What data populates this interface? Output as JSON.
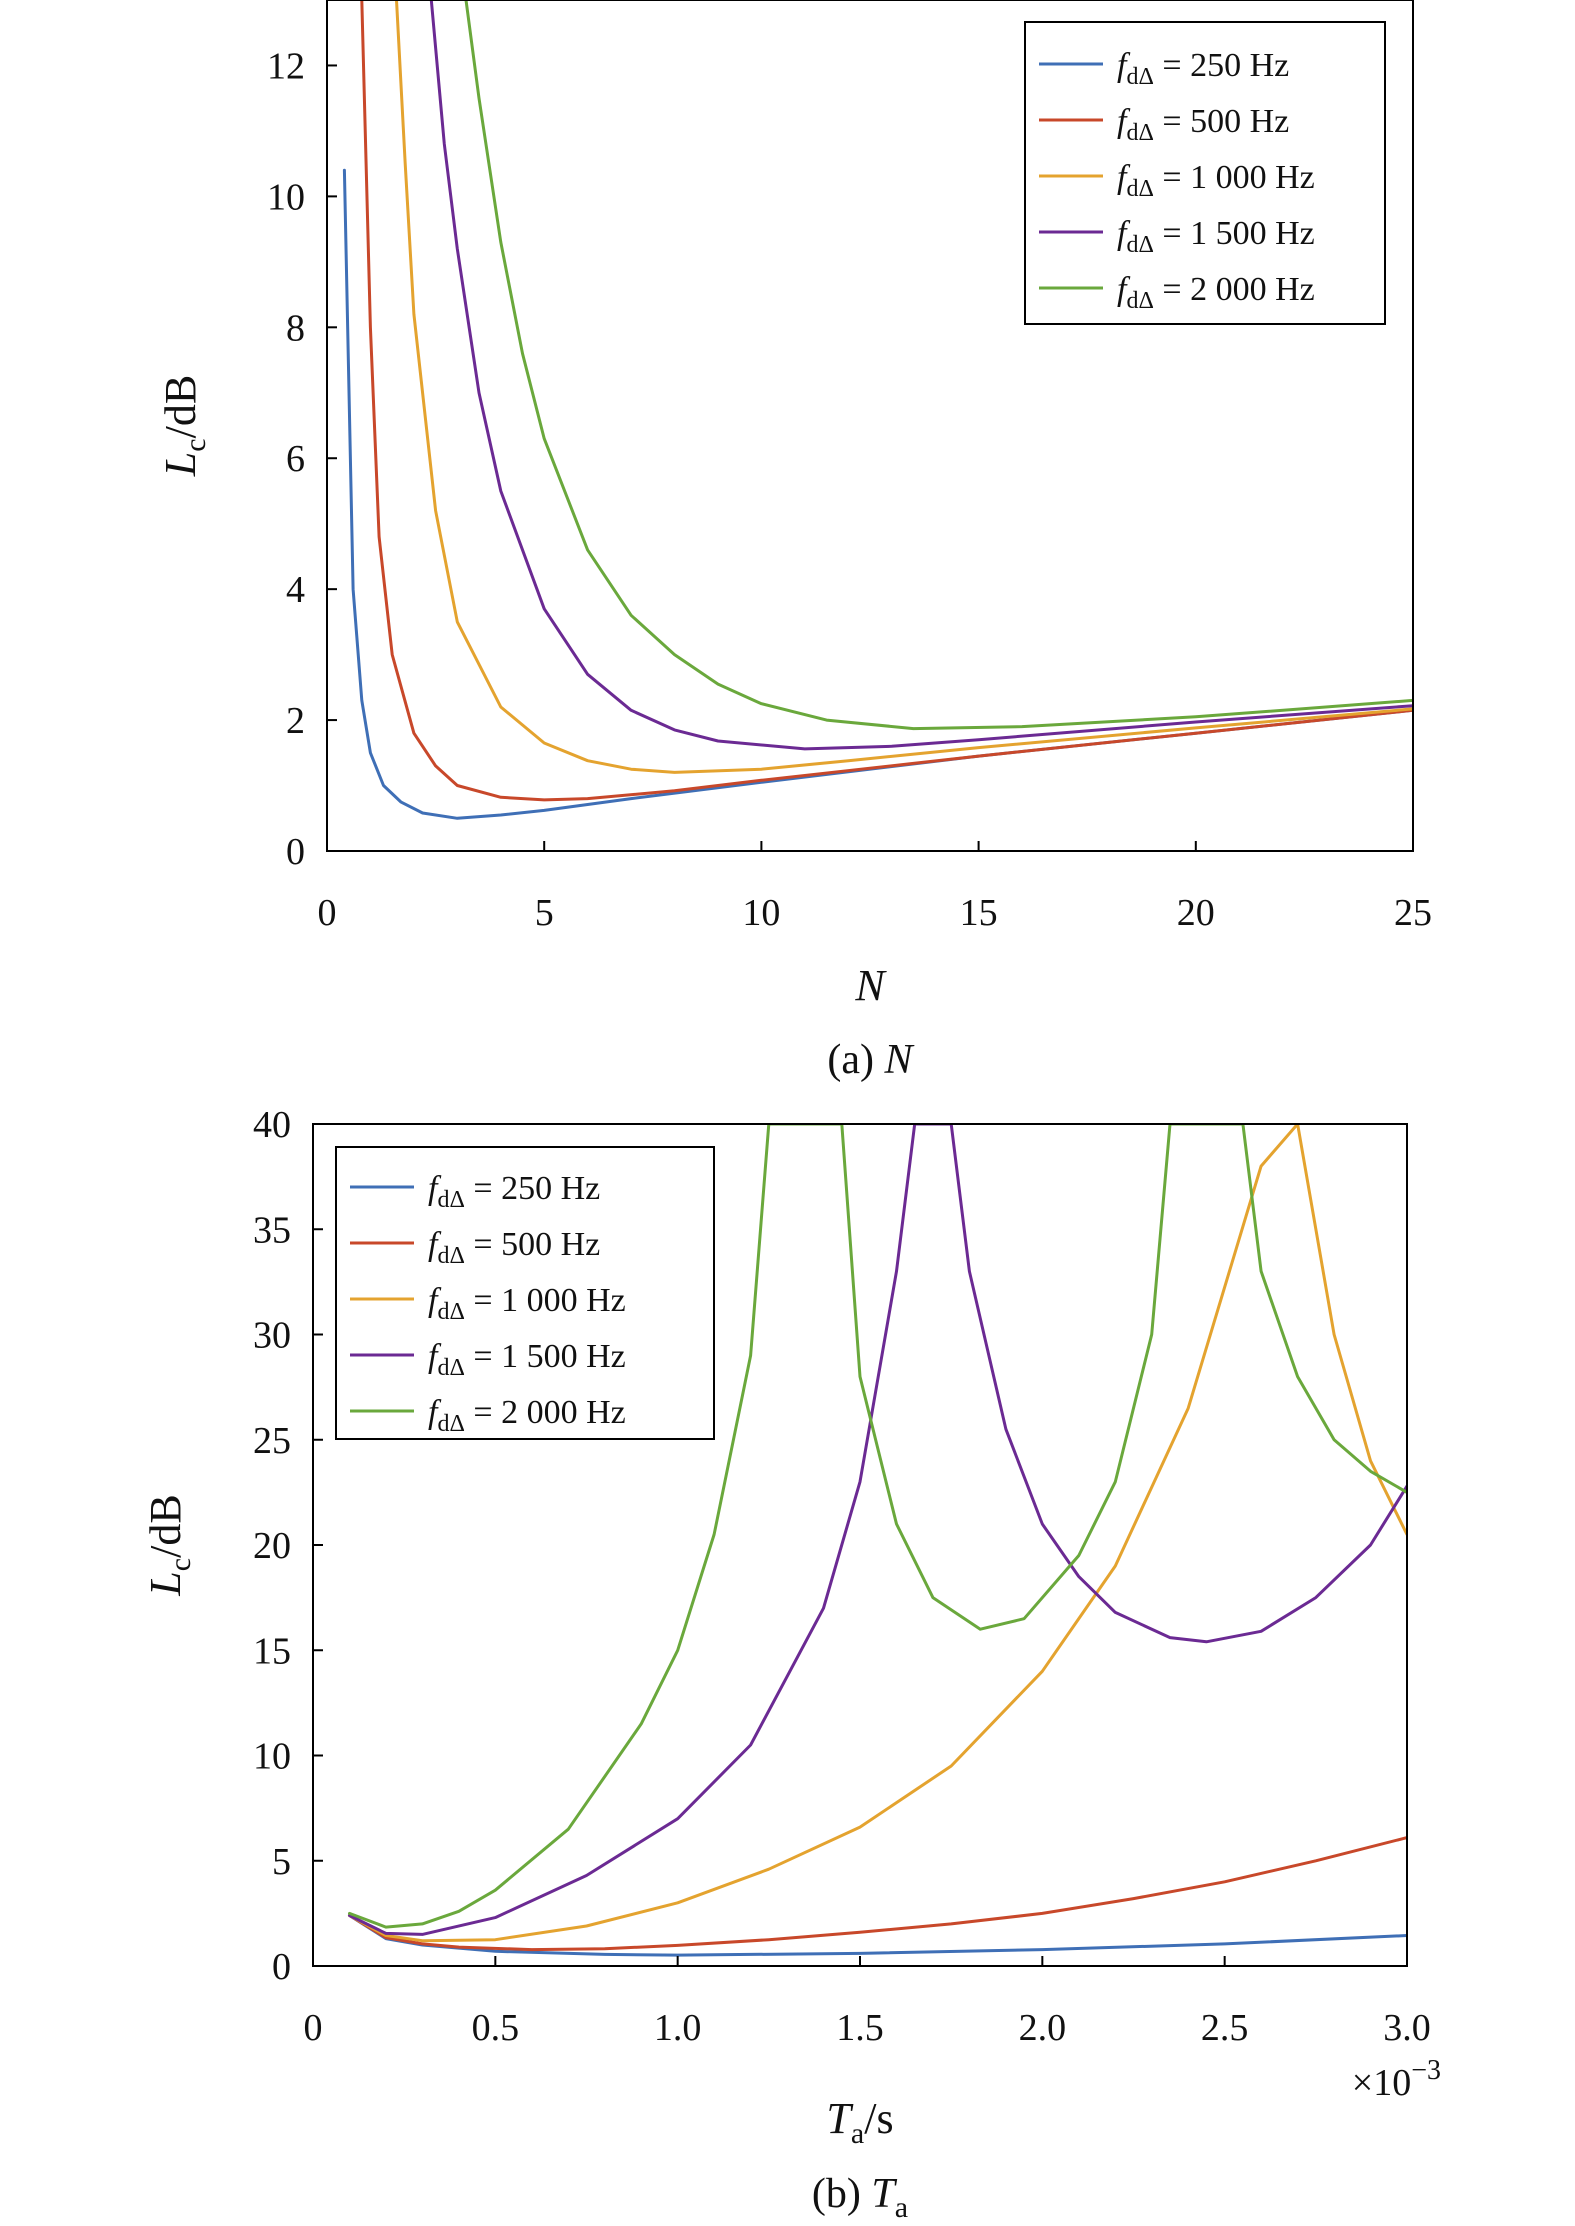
{
  "chart_data": [
    {
      "type": "line",
      "caption": "(a) N",
      "xlabel": "N",
      "ylabel": "Lc/dB",
      "xlim": [
        0,
        25
      ],
      "ylim": [
        0,
        13
      ],
      "xticks": [
        0,
        5,
        10,
        15,
        20,
        25
      ],
      "yticks": [
        0,
        2,
        4,
        6,
        8,
        10,
        12
      ],
      "xtick_labels": [
        "0",
        "5",
        "10",
        "15",
        "20",
        "25"
      ],
      "ytick_labels": [
        "0",
        "2",
        "4",
        "6",
        "8",
        "10",
        "12"
      ],
      "legend_position": "top-right",
      "grid": false,
      "series": [
        {
          "name": "f = 250 Hz",
          "label_main": "f",
          "label_sub": "dΔ",
          "label_rest": " = 250 Hz",
          "color": "#3f6fb6",
          "x": [
            0.4,
            0.6,
            0.8,
            1.0,
            1.3,
            1.7,
            2.2,
            3.0,
            4.0,
            5.0,
            7.0,
            10.0,
            15.0,
            20.0,
            25.0
          ],
          "y": [
            10.4,
            4.0,
            2.3,
            1.5,
            1.0,
            0.75,
            0.58,
            0.5,
            0.55,
            0.62,
            0.8,
            1.05,
            1.45,
            1.8,
            2.15
          ]
        },
        {
          "name": "f = 500 Hz",
          "label_main": "f",
          "label_sub": "dΔ",
          "label_rest": " = 500 Hz",
          "color": "#c8482a",
          "x": [
            0.8,
            0.9,
            1.0,
            1.2,
            1.5,
            2.0,
            2.5,
            3.0,
            4.0,
            5.0,
            6.0,
            8.0,
            10.0,
            15.0,
            20.0,
            25.0
          ],
          "y": [
            13.0,
            10.5,
            8.0,
            4.8,
            3.0,
            1.8,
            1.3,
            1.0,
            0.82,
            0.78,
            0.8,
            0.92,
            1.08,
            1.45,
            1.8,
            2.15
          ]
        },
        {
          "name": "f = 1 000 Hz",
          "label_main": "f",
          "label_sub": "dΔ",
          "label_rest": " = 1 000 Hz",
          "color": "#e4a32f",
          "x": [
            1.6,
            1.8,
            2.0,
            2.5,
            3.0,
            4.0,
            5.0,
            6.0,
            7.0,
            8.0,
            10.0,
            12.0,
            15.0,
            20.0,
            25.0
          ],
          "y": [
            13.0,
            10.5,
            8.2,
            5.2,
            3.5,
            2.2,
            1.65,
            1.38,
            1.25,
            1.2,
            1.25,
            1.38,
            1.58,
            1.88,
            2.17
          ]
        },
        {
          "name": "f = 1 500 Hz",
          "label_main": "f",
          "label_sub": "dΔ",
          "label_rest": " = 1 500 Hz",
          "color": "#6b2a93",
          "x": [
            2.4,
            2.7,
            3.0,
            3.5,
            4.0,
            5.0,
            6.0,
            7.0,
            8.0,
            9.0,
            11.0,
            13.0,
            15.0,
            20.0,
            25.0
          ],
          "y": [
            13.0,
            10.8,
            9.2,
            7.0,
            5.5,
            3.7,
            2.7,
            2.15,
            1.85,
            1.68,
            1.56,
            1.6,
            1.7,
            1.97,
            2.22
          ]
        },
        {
          "name": "f = 2 000 Hz",
          "label_main": "f",
          "label_sub": "dΔ",
          "label_rest": " = 2 000 Hz",
          "color": "#6aa83c",
          "x": [
            3.2,
            3.5,
            4.0,
            4.5,
            5.0,
            6.0,
            7.0,
            8.0,
            9.0,
            10.0,
            11.5,
            13.5,
            16.0,
            20.0,
            25.0
          ],
          "y": [
            13.0,
            11.5,
            9.3,
            7.6,
            6.3,
            4.6,
            3.6,
            3.0,
            2.55,
            2.25,
            2.0,
            1.87,
            1.9,
            2.05,
            2.3
          ]
        }
      ]
    },
    {
      "type": "line",
      "caption": "(b) Ta",
      "xlabel": "Ta/s",
      "ylabel": "Lc/dB",
      "x_multiplier": "×10−3",
      "xlim": [
        0,
        3.0
      ],
      "ylim": [
        0,
        40
      ],
      "xticks": [
        0,
        0.5,
        1.0,
        1.5,
        2.0,
        2.5,
        3.0
      ],
      "yticks": [
        0,
        5,
        10,
        15,
        20,
        25,
        30,
        35,
        40
      ],
      "xtick_labels": [
        "0",
        "0.5",
        "1.0",
        "1.5",
        "2.0",
        "2.5",
        "3.0"
      ],
      "ytick_labels": [
        "0",
        "5",
        "10",
        "15",
        "20",
        "25",
        "30",
        "35",
        "40"
      ],
      "legend_position": "top-left",
      "grid": false,
      "series": [
        {
          "name": "f = 250 Hz",
          "label_main": "f",
          "label_sub": "dΔ",
          "label_rest": " = 250 Hz",
          "color": "#3f6fb6",
          "x": [
            0.1,
            0.2,
            0.3,
            0.5,
            0.8,
            1.0,
            1.5,
            2.0,
            2.5,
            3.0
          ],
          "y": [
            2.4,
            1.3,
            1.0,
            0.7,
            0.55,
            0.52,
            0.6,
            0.78,
            1.05,
            1.45
          ]
        },
        {
          "name": "f = 500 Hz",
          "label_main": "f",
          "label_sub": "dΔ",
          "label_rest": " = 500 Hz",
          "color": "#c8482a",
          "x": [
            0.1,
            0.2,
            0.3,
            0.4,
            0.6,
            0.8,
            1.0,
            1.25,
            1.5,
            1.75,
            2.0,
            2.25,
            2.5,
            2.75,
            3.0
          ],
          "y": [
            2.4,
            1.35,
            1.05,
            0.9,
            0.78,
            0.82,
            0.98,
            1.25,
            1.6,
            2.0,
            2.5,
            3.2,
            4.0,
            5.0,
            6.1
          ]
        },
        {
          "name": "f = 1 000 Hz",
          "label_main": "f",
          "label_sub": "dΔ",
          "label_rest": " = 1 000 Hz",
          "color": "#e4a32f",
          "x": [
            0.1,
            0.2,
            0.3,
            0.5,
            0.75,
            1.0,
            1.25,
            1.5,
            1.75,
            2.0,
            2.2,
            2.4,
            2.6,
            2.7,
            2.8,
            2.9,
            3.0
          ],
          "y": [
            2.4,
            1.45,
            1.2,
            1.25,
            1.9,
            3.0,
            4.6,
            6.6,
            9.5,
            14.0,
            19.0,
            26.5,
            38.0,
            40.0,
            30.0,
            24.0,
            20.5
          ]
        },
        {
          "name": "f = 1 500 Hz",
          "label_main": "f",
          "label_sub": "dΔ",
          "label_rest": " = 1 500 Hz",
          "color": "#6b2a93",
          "x": [
            0.1,
            0.2,
            0.3,
            0.5,
            0.75,
            1.0,
            1.2,
            1.4,
            1.5,
            1.6,
            1.65,
            1.75,
            1.8,
            1.9,
            2.0,
            2.1,
            2.2,
            2.35,
            2.45,
            2.6,
            2.75,
            2.9,
            3.0
          ],
          "y": [
            2.4,
            1.55,
            1.5,
            2.3,
            4.3,
            7.0,
            10.5,
            17.0,
            23.0,
            33.0,
            40.0,
            40.0,
            33.0,
            25.5,
            21.0,
            18.5,
            16.8,
            15.6,
            15.4,
            15.9,
            17.5,
            20.0,
            22.8
          ]
        },
        {
          "name": "f = 2 000 Hz",
          "label_main": "f",
          "label_sub": "dΔ",
          "label_rest": " = 2 000 Hz",
          "color": "#6aa83c",
          "x": [
            0.1,
            0.2,
            0.3,
            0.4,
            0.5,
            0.7,
            0.9,
            1.0,
            1.1,
            1.2,
            1.25,
            1.45,
            1.5,
            1.6,
            1.7,
            1.83,
            1.95,
            2.1,
            2.2,
            2.3,
            2.35,
            2.55,
            2.6,
            2.7,
            2.8,
            2.9,
            3.0
          ],
          "y": [
            2.5,
            1.85,
            2.0,
            2.6,
            3.6,
            6.5,
            11.5,
            15.0,
            20.5,
            29.0,
            40.0,
            40.0,
            28.0,
            21.0,
            17.5,
            16.0,
            16.5,
            19.5,
            23.0,
            30.0,
            40.0,
            40.0,
            33.0,
            28.0,
            25.0,
            23.5,
            22.5
          ]
        }
      ]
    }
  ]
}
